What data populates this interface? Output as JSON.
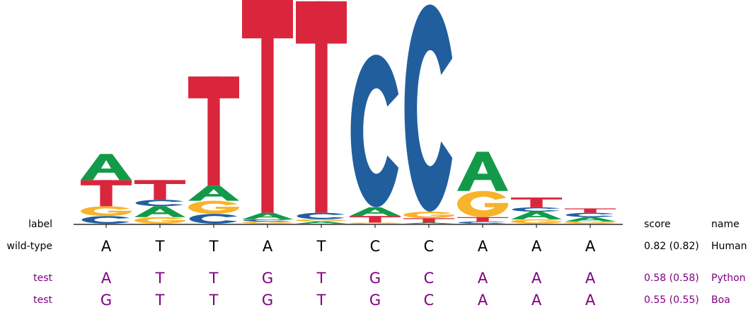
{
  "chart_data": {
    "type": "sequence-logo",
    "positions": 10,
    "colors": {
      "A": "#129a48",
      "C": "#215e9d",
      "G": "#f7b32b",
      "T": "#d9263d"
    },
    "logo": [
      [
        {
          "base": "C",
          "h": 0.035
        },
        {
          "base": "G",
          "h": 0.045
        },
        {
          "base": "T",
          "h": 0.12
        },
        {
          "base": "A",
          "h": 0.12
        }
      ],
      [
        {
          "base": "G",
          "h": 0.03
        },
        {
          "base": "A",
          "h": 0.05
        },
        {
          "base": "C",
          "h": 0.03
        },
        {
          "base": "T",
          "h": 0.09
        }
      ],
      [
        {
          "base": "C",
          "h": 0.045
        },
        {
          "base": "G",
          "h": 0.06
        },
        {
          "base": "A",
          "h": 0.07
        },
        {
          "base": "T",
          "h": 0.5
        }
      ],
      [
        {
          "base": "G",
          "h": 0.01
        },
        {
          "base": "C",
          "h": 0.01
        },
        {
          "base": "A",
          "h": 0.03
        },
        {
          "base": "T",
          "h": 1.0
        }
      ],
      [
        {
          "base": "A",
          "h": 0.01
        },
        {
          "base": "G",
          "h": 0.01
        },
        {
          "base": "C",
          "h": 0.03
        },
        {
          "base": "T",
          "h": 0.97
        }
      ],
      [
        {
          "base": "G",
          "h": 0.005
        },
        {
          "base": "T",
          "h": 0.03
        },
        {
          "base": "A",
          "h": 0.04
        },
        {
          "base": "C",
          "h": 0.7
        }
      ],
      [
        {
          "base": "A",
          "h": 0.005
        },
        {
          "base": "T",
          "h": 0.02
        },
        {
          "base": "G",
          "h": 0.03
        },
        {
          "base": "C",
          "h": 0.95
        }
      ],
      [
        {
          "base": "C",
          "h": 0.01
        },
        {
          "base": "T",
          "h": 0.02
        },
        {
          "base": "G",
          "h": 0.12
        },
        {
          "base": "A",
          "h": 0.18
        }
      ],
      [
        {
          "base": "G",
          "h": 0.02
        },
        {
          "base": "A",
          "h": 0.035
        },
        {
          "base": "C",
          "h": 0.02
        },
        {
          "base": "T",
          "h": 0.045
        }
      ],
      [
        {
          "base": "G",
          "h": 0.01
        },
        {
          "base": "A",
          "h": 0.02
        },
        {
          "base": "C",
          "h": 0.02
        },
        {
          "base": "T",
          "h": 0.02
        }
      ]
    ]
  },
  "headers": {
    "label": "label",
    "score": "score",
    "name": "name"
  },
  "rows": [
    {
      "label": "wild-type",
      "seq": [
        "A",
        "T",
        "T",
        "A",
        "T",
        "C",
        "C",
        "A",
        "A",
        "A"
      ],
      "score": "0.82 (0.82)",
      "name": "Human",
      "kind": "wt"
    },
    {
      "label": "test",
      "seq": [
        "A",
        "T",
        "T",
        "G",
        "T",
        "G",
        "C",
        "A",
        "A",
        "A"
      ],
      "score": "0.58 (0.58)",
      "name": "Python",
      "kind": "tst"
    },
    {
      "label": "test",
      "seq": [
        "G",
        "T",
        "T",
        "G",
        "T",
        "G",
        "C",
        "A",
        "A",
        "A"
      ],
      "score": "0.55 (0.55)",
      "name": "Boa",
      "kind": "tst"
    }
  ]
}
